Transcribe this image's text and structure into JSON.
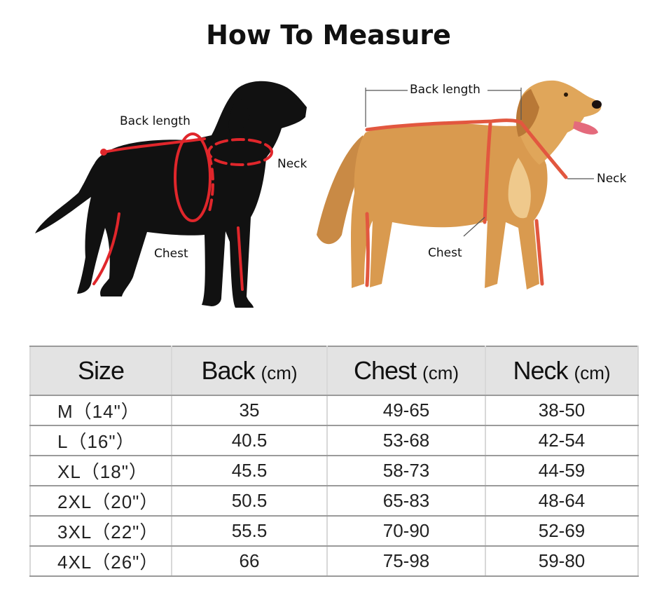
{
  "title": "How To Measure",
  "left_illustration": {
    "back_label": "Back length",
    "neck_label": "Neck",
    "chest_label": "Chest"
  },
  "right_illustration": {
    "back_label": "Back length",
    "neck_label": "Neck",
    "chest_label": "Chest"
  },
  "colors": {
    "measure_line": "#e0262b",
    "tape": "#e2573f",
    "header_bg": "#e3e3e3",
    "row_border": "#9a9a9a",
    "dog_fur": "#d99a4f"
  },
  "table": {
    "headers": [
      {
        "main": "Size",
        "unit": ""
      },
      {
        "main": "Back",
        "unit": "(cm)"
      },
      {
        "main": "Chest",
        "unit": "(cm)"
      },
      {
        "main": "Neck",
        "unit": "(cm)"
      }
    ],
    "rows": [
      [
        "M（14\"）",
        "35",
        "49-65",
        "38-50"
      ],
      [
        "L（16\"）",
        "40.5",
        "53-68",
        "42-54"
      ],
      [
        "XL（18\"）",
        "45.5",
        "58-73",
        "44-59"
      ],
      [
        "2XL（20\"）",
        "50.5",
        "65-83",
        "48-64"
      ],
      [
        "3XL（22\"）",
        "55.5",
        "70-90",
        "52-69"
      ],
      [
        "4XL（26\"）",
        "66",
        "75-98",
        "59-80"
      ]
    ]
  }
}
